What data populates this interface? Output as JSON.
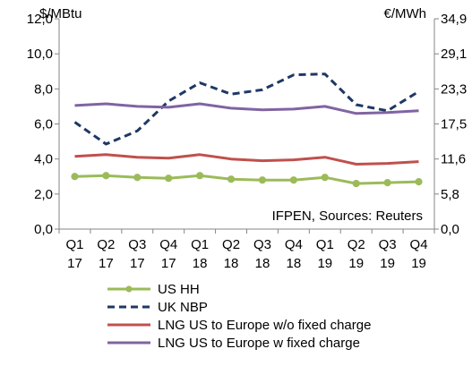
{
  "chart_data": {
    "type": "line",
    "categories": [
      [
        "Q1",
        "17"
      ],
      [
        "Q2",
        "17"
      ],
      [
        "Q3",
        "17"
      ],
      [
        "Q4",
        "17"
      ],
      [
        "Q1",
        "18"
      ],
      [
        "Q2",
        "18"
      ],
      [
        "Q3",
        "18"
      ],
      [
        "Q4",
        "18"
      ],
      [
        "Q1",
        "19"
      ],
      [
        "Q2",
        "19"
      ],
      [
        "Q3",
        "19"
      ],
      [
        "Q4",
        "19"
      ]
    ],
    "y_left": {
      "unit": "$/MBtu",
      "ticks": [
        "0,0",
        "2,0",
        "4,0",
        "6,0",
        "8,0",
        "10,0",
        "12,0"
      ],
      "min": 0,
      "max": 12
    },
    "y_right": {
      "unit": "€/MWh",
      "ticks": [
        "0,0",
        "5,8",
        "11,6",
        "17,5",
        "23,3",
        "29,1",
        "34,9"
      ]
    },
    "annotation": "IFPEN, Sources: Reuters",
    "grid": false,
    "legend_placement": "bottom",
    "series": [
      {
        "name": "US HH",
        "color": "#9BBB59",
        "style": "solid-markers",
        "values": [
          3.0,
          3.05,
          2.95,
          2.9,
          3.05,
          2.85,
          2.8,
          2.8,
          2.95,
          2.6,
          2.65,
          2.7
        ]
      },
      {
        "name": "UK NBP",
        "color": "#1F3864",
        "style": "dashed",
        "values": [
          6.1,
          4.85,
          5.6,
          7.3,
          8.35,
          7.7,
          7.95,
          8.8,
          8.85,
          7.1,
          6.75,
          7.85
        ]
      },
      {
        "name": "LNG US to Europe w/o fixed charge",
        "color": "#C0504D",
        "style": "solid",
        "values": [
          4.15,
          4.25,
          4.1,
          4.05,
          4.25,
          4.0,
          3.9,
          3.95,
          4.1,
          3.7,
          3.75,
          3.85
        ]
      },
      {
        "name": "LNG US to Europe w fixed charge",
        "color": "#8064A2",
        "style": "solid",
        "values": [
          7.05,
          7.15,
          7.0,
          6.95,
          7.15,
          6.9,
          6.8,
          6.85,
          7.0,
          6.6,
          6.65,
          6.75
        ]
      }
    ]
  }
}
